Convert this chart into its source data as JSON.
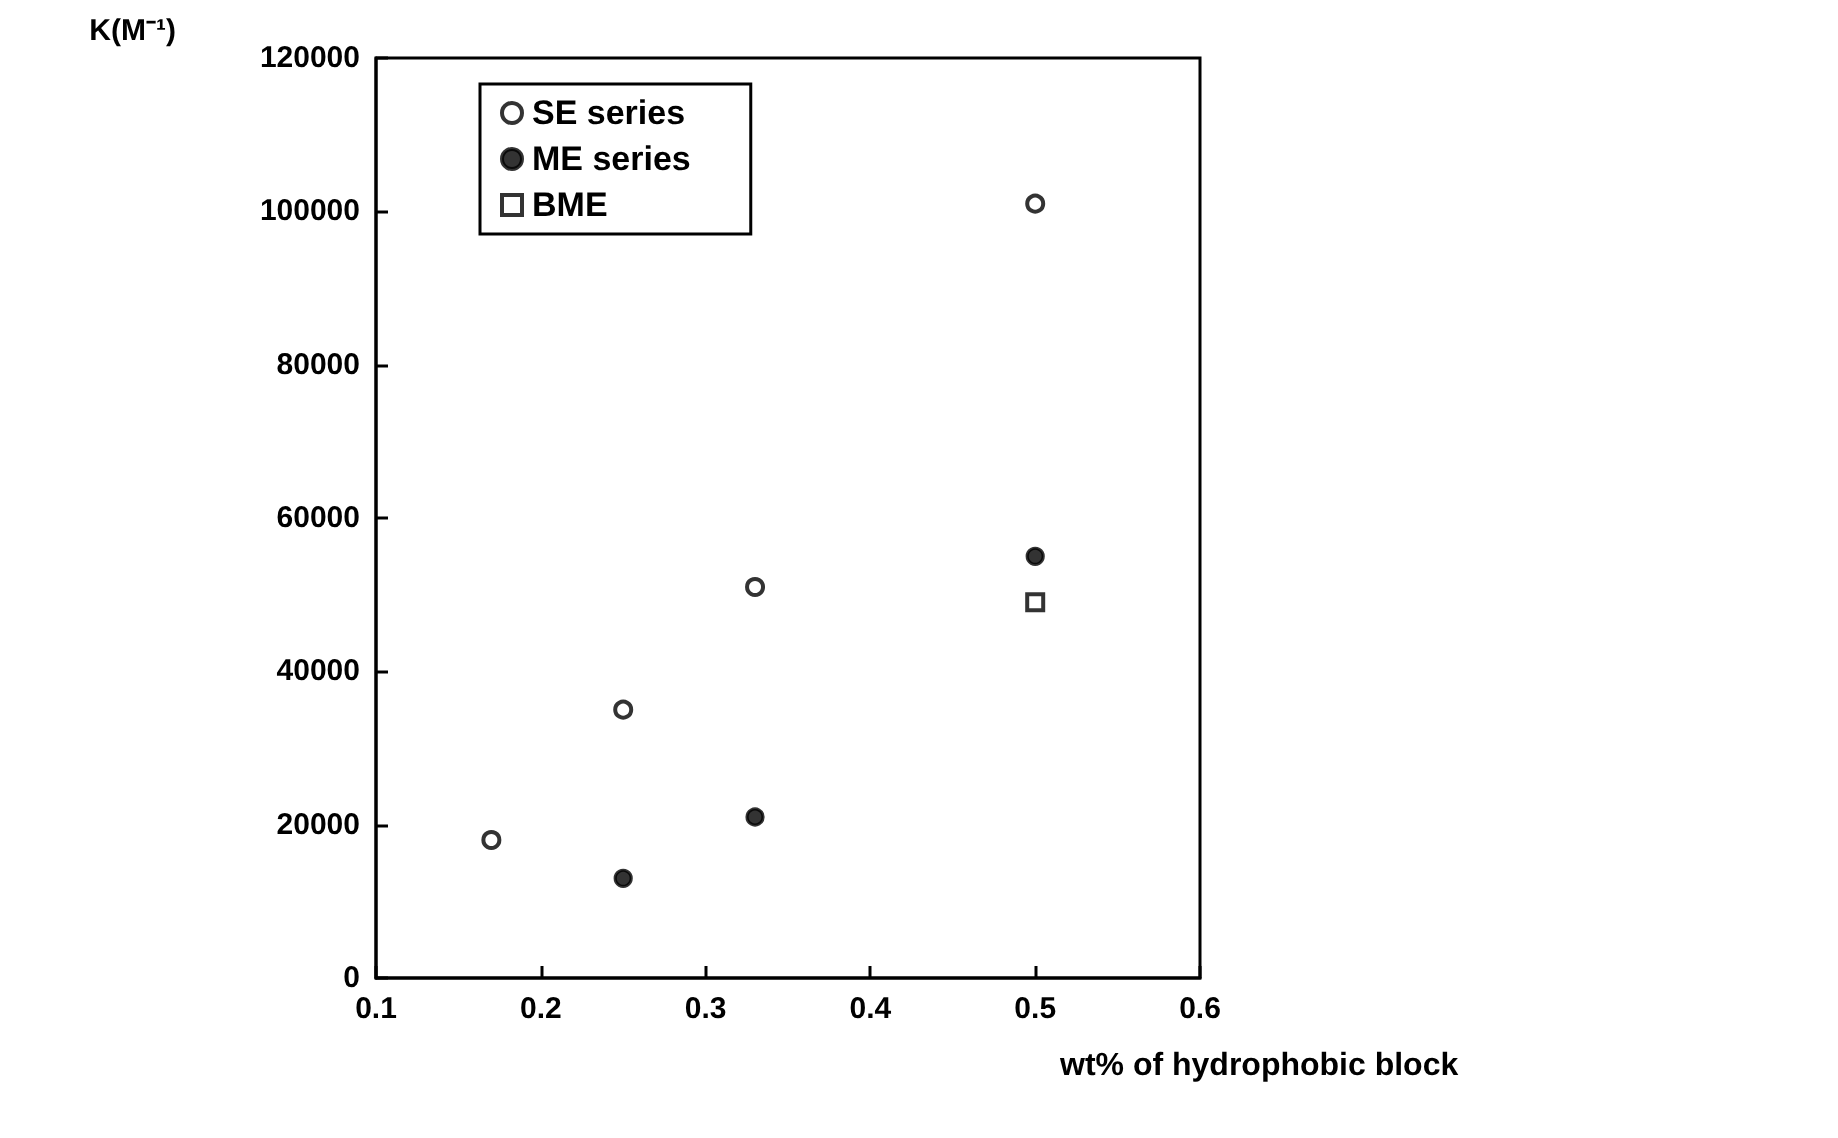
{
  "chart_data": {
    "type": "scatter",
    "xlabel": "wt% of hydrophobic block",
    "ylabel": "K(M⁻¹)",
    "xlim": [
      0.1,
      0.6
    ],
    "xticks": [
      0.1,
      0.2,
      0.3,
      0.4,
      0.5,
      0.6
    ],
    "ylim": [
      0,
      120000
    ],
    "yticks": [
      0,
      20000,
      40000,
      60000,
      80000,
      100000,
      120000
    ],
    "grid": false,
    "legend": "top left",
    "series": [
      {
        "name": "SE series",
        "color": "#000000",
        "marker": "circle",
        "x": [
          0.17,
          0.25,
          0.33,
          0.5
        ],
        "values": [
          18000,
          35000,
          51000,
          101000
        ]
      },
      {
        "name": "ME series",
        "color": "#000000",
        "x": [
          0.25,
          0.33,
          0.5
        ],
        "values": [
          13000,
          21000,
          55000
        ]
      },
      {
        "name": "BME",
        "color": "#000000",
        "marker": "square",
        "x": [
          0.5
        ],
        "values": [
          49000
        ]
      }
    ]
  }
}
